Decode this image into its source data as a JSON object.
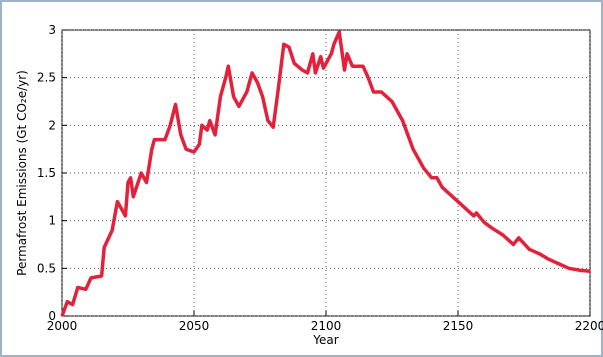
{
  "chart_data": {
    "type": "line",
    "xlabel": "Year",
    "ylabel": "Permafrost Emissions (Gt CO₂e/yr)",
    "xlim": [
      2000,
      2200
    ],
    "xticks": [
      2000,
      2050,
      2100,
      2150,
      2200
    ],
    "ylim": [
      0,
      3
    ],
    "yticks": [
      0,
      0.5,
      1,
      1.5,
      2,
      2.5,
      3
    ],
    "grid": true,
    "x": [
      2000,
      2002,
      2004,
      2006,
      2009,
      2011,
      2015,
      2016,
      2019,
      2021,
      2024,
      2025,
      2026,
      2027,
      2030,
      2032,
      2034,
      2035,
      2039,
      2041,
      2043,
      2045,
      2047,
      2050,
      2052,
      2053,
      2055,
      2056,
      2058,
      2060,
      2062,
      2063,
      2065,
      2067,
      2070,
      2072,
      2074,
      2076,
      2078,
      2080,
      2082,
      2084,
      2086,
      2088,
      2091,
      2093,
      2095,
      2096,
      2098,
      2099,
      2102,
      2103,
      2105,
      2107,
      2108,
      2110,
      2114,
      2116,
      2118,
      2121,
      2125,
      2129,
      2133,
      2137,
      2140,
      2142,
      2144,
      2148,
      2152,
      2156,
      2157,
      2160,
      2163,
      2167,
      2171,
      2173,
      2177,
      2181,
      2184,
      2188,
      2192,
      2196,
      2200
    ],
    "series": [
      {
        "name": "Permafrost emissions",
        "color": "#e3213b",
        "values": [
          0,
          0.15,
          0.12,
          0.3,
          0.28,
          0.4,
          0.42,
          0.72,
          0.9,
          1.2,
          1.05,
          1.4,
          1.45,
          1.25,
          1.5,
          1.4,
          1.75,
          1.85,
          1.85,
          2.0,
          2.22,
          1.9,
          1.75,
          1.72,
          1.8,
          2.0,
          1.95,
          2.05,
          1.9,
          2.3,
          2.5,
          2.62,
          2.3,
          2.2,
          2.35,
          2.55,
          2.45,
          2.3,
          2.05,
          1.98,
          2.4,
          2.85,
          2.82,
          2.65,
          2.58,
          2.55,
          2.75,
          2.55,
          2.72,
          2.6,
          2.75,
          2.85,
          2.98,
          2.58,
          2.75,
          2.62,
          2.62,
          2.5,
          2.35,
          2.35,
          2.25,
          2.05,
          1.75,
          1.55,
          1.45,
          1.45,
          1.35,
          1.25,
          1.15,
          1.05,
          1.08,
          0.98,
          0.92,
          0.85,
          0.75,
          0.82,
          0.7,
          0.65,
          0.6,
          0.55,
          0.5,
          0.48,
          0.47
        ]
      }
    ]
  }
}
